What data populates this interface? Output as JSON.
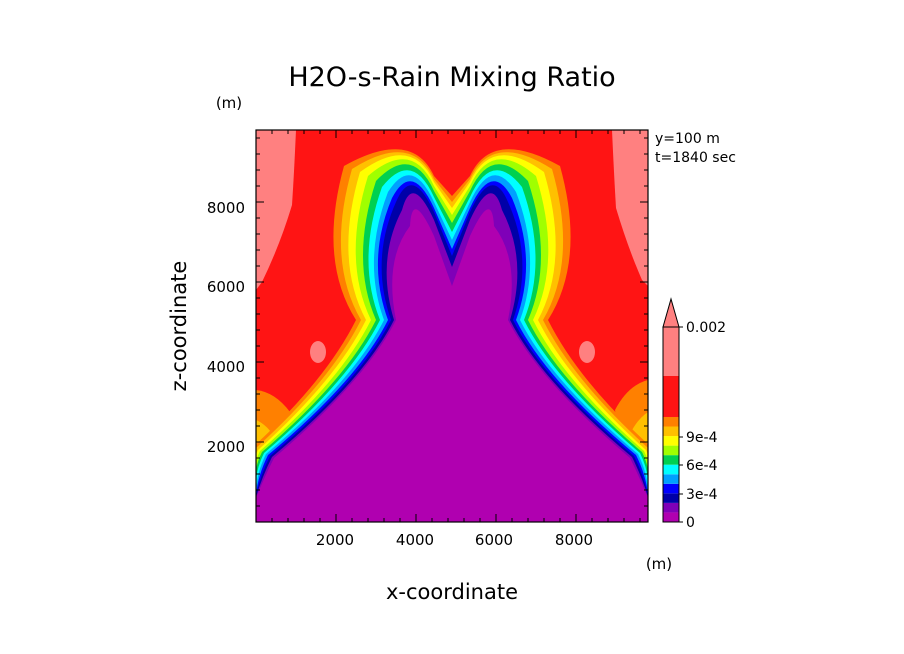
{
  "chart_data": {
    "type": "heatmap",
    "title": "H2O-s-Rain Mixing Ratio",
    "xlabel": "x-coordinate",
    "ylabel": "z-coordinate",
    "x_unit": "(m)",
    "y_unit": "(m)",
    "annotations": [
      "y=100 m",
      "t=1840 sec"
    ],
    "xlim": [
      0,
      9800
    ],
    "ylim": [
      0,
      9800
    ],
    "x_ticks": [
      2000,
      4000,
      6000,
      8000
    ],
    "y_ticks": [
      2000,
      4000,
      6000,
      8000
    ],
    "x_tick_labels": [
      "2000",
      "4000",
      "6000",
      "8000"
    ],
    "y_tick_labels": [
      "2000",
      "4000",
      "6000",
      "8000"
    ],
    "colorbar": {
      "levels": [
        0,
        0.0001,
        0.0002,
        0.0003,
        0.0004,
        0.0005,
        0.0006,
        0.0007,
        0.0008,
        0.0009,
        0.001,
        0.002
      ],
      "colors": [
        "#b000b0",
        "#7f00b8",
        "#0000a8",
        "#0000ff",
        "#00a0ff",
        "#00ffff",
        "#00d050",
        "#a0ff00",
        "#ffff00",
        "#ffc000",
        "#ff8000",
        "#ff1414",
        "#ff8080"
      ],
      "labels": [
        {
          "value": 0,
          "text": "0"
        },
        {
          "value": 0.0003,
          "text": "3e-4"
        },
        {
          "value": 0.0006,
          "text": "6e-4"
        },
        {
          "value": 0.0009,
          "text": "9e-4"
        },
        {
          "value": 0.002,
          "text": "0.002"
        }
      ],
      "extend": "max"
    }
  }
}
